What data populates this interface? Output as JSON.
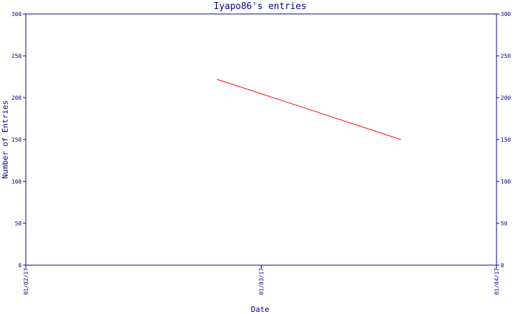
{
  "chart_data": {
    "type": "line",
    "title": "Iyapo86's entries",
    "xlabel": "Date",
    "ylabel": "Number of Entries",
    "ylim": [
      0,
      300
    ],
    "yticks": [
      0,
      50,
      100,
      150,
      200,
      250,
      300
    ],
    "xlim": [
      "2017-01-02",
      "2017-01-04"
    ],
    "xtick_values": [
      "2017-01-02",
      "2017-01-03",
      "2017-01-04"
    ],
    "xtick_labels": [
      "01/02/17",
      "01/03/17",
      "01/04/17"
    ],
    "grid": false,
    "series": [
      {
        "x": [
          "2017-01-02T19:30",
          "2017-01-03T14:15"
        ],
        "y": [
          222,
          150
        ]
      }
    ],
    "colors": {
      "line": "#ff0000",
      "axes": "#000080",
      "text": "#000080"
    }
  }
}
